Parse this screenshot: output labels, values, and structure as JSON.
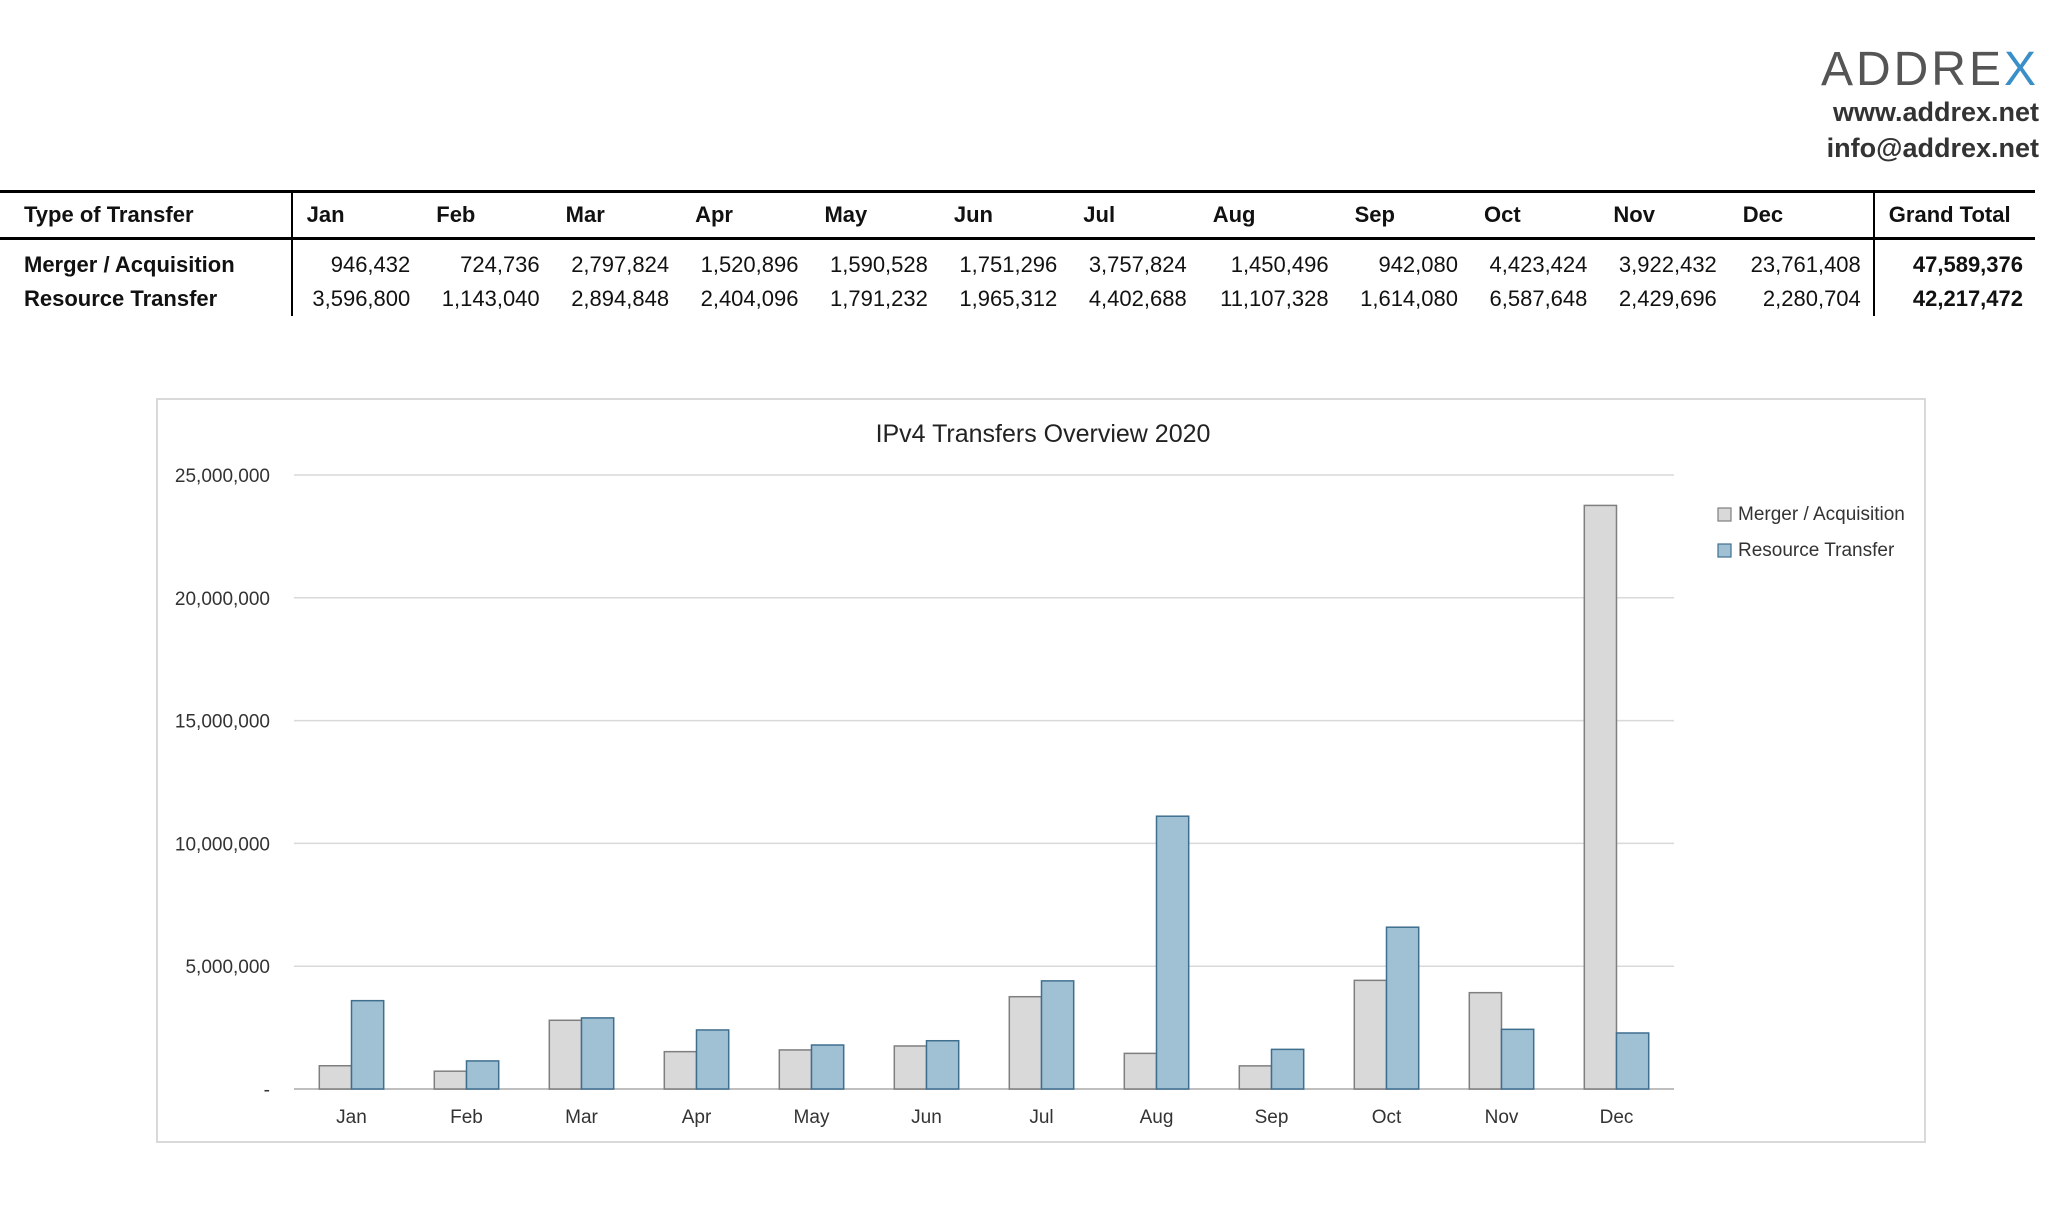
{
  "brand": {
    "name_main": "ADDRE",
    "name_accent": "X",
    "website": "www.addrex.net",
    "email": "info@addrex.net",
    "accent_color": "#3a8fc8"
  },
  "table": {
    "header_label": "Type of Transfer",
    "months": [
      "Jan",
      "Feb",
      "Mar",
      "Apr",
      "May",
      "Jun",
      "Jul",
      "Aug",
      "Sep",
      "Oct",
      "Nov",
      "Dec"
    ],
    "total_label": "Grand Total",
    "rows": [
      {
        "label": "Merger / Acquisition",
        "values": [
          "946,432",
          "724,736",
          "2,797,824",
          "1,520,896",
          "1,590,528",
          "1,751,296",
          "3,757,824",
          "1,450,496",
          "942,080",
          "4,423,424",
          "3,922,432",
          "23,761,408"
        ],
        "total": "47,589,376"
      },
      {
        "label": "Resource Transfer",
        "values": [
          "3,596,800",
          "1,143,040",
          "2,894,848",
          "2,404,096",
          "1,791,232",
          "1,965,312",
          "4,402,688",
          "11,107,328",
          "1,614,080",
          "6,587,648",
          "2,429,696",
          "2,280,704"
        ],
        "total": "42,217,472"
      }
    ]
  },
  "chart_data": {
    "type": "bar",
    "title": "IPv4 Transfers Overview  2020",
    "xlabel": "",
    "ylabel": "",
    "categories": [
      "Jan",
      "Feb",
      "Mar",
      "Apr",
      "May",
      "Jun",
      "Jul",
      "Aug",
      "Sep",
      "Oct",
      "Nov",
      "Dec"
    ],
    "series": [
      {
        "name": "Merger / Acquisition",
        "color": "#d9d9d9",
        "stroke": "#7f7f7f",
        "values": [
          946432,
          724736,
          2797824,
          1520896,
          1590528,
          1751296,
          3757824,
          1450496,
          942080,
          4423424,
          3922432,
          23761408
        ]
      },
      {
        "name": "Resource Transfer",
        "color": "#a0c0d4",
        "stroke": "#3f6f8f",
        "values": [
          3596800,
          1143040,
          2894848,
          2404096,
          1791232,
          1965312,
          4402688,
          11107328,
          1614080,
          6587648,
          2429696,
          2280704
        ]
      }
    ],
    "ylim": [
      0,
      25000000
    ],
    "y_ticks": [
      0,
      5000000,
      10000000,
      15000000,
      20000000,
      25000000
    ],
    "y_tick_labels": [
      "-",
      "5,000,000",
      "10,000,000",
      "15,000,000",
      "20,000,000",
      "25,000,000"
    ],
    "grid": true,
    "legend_position": "right"
  }
}
